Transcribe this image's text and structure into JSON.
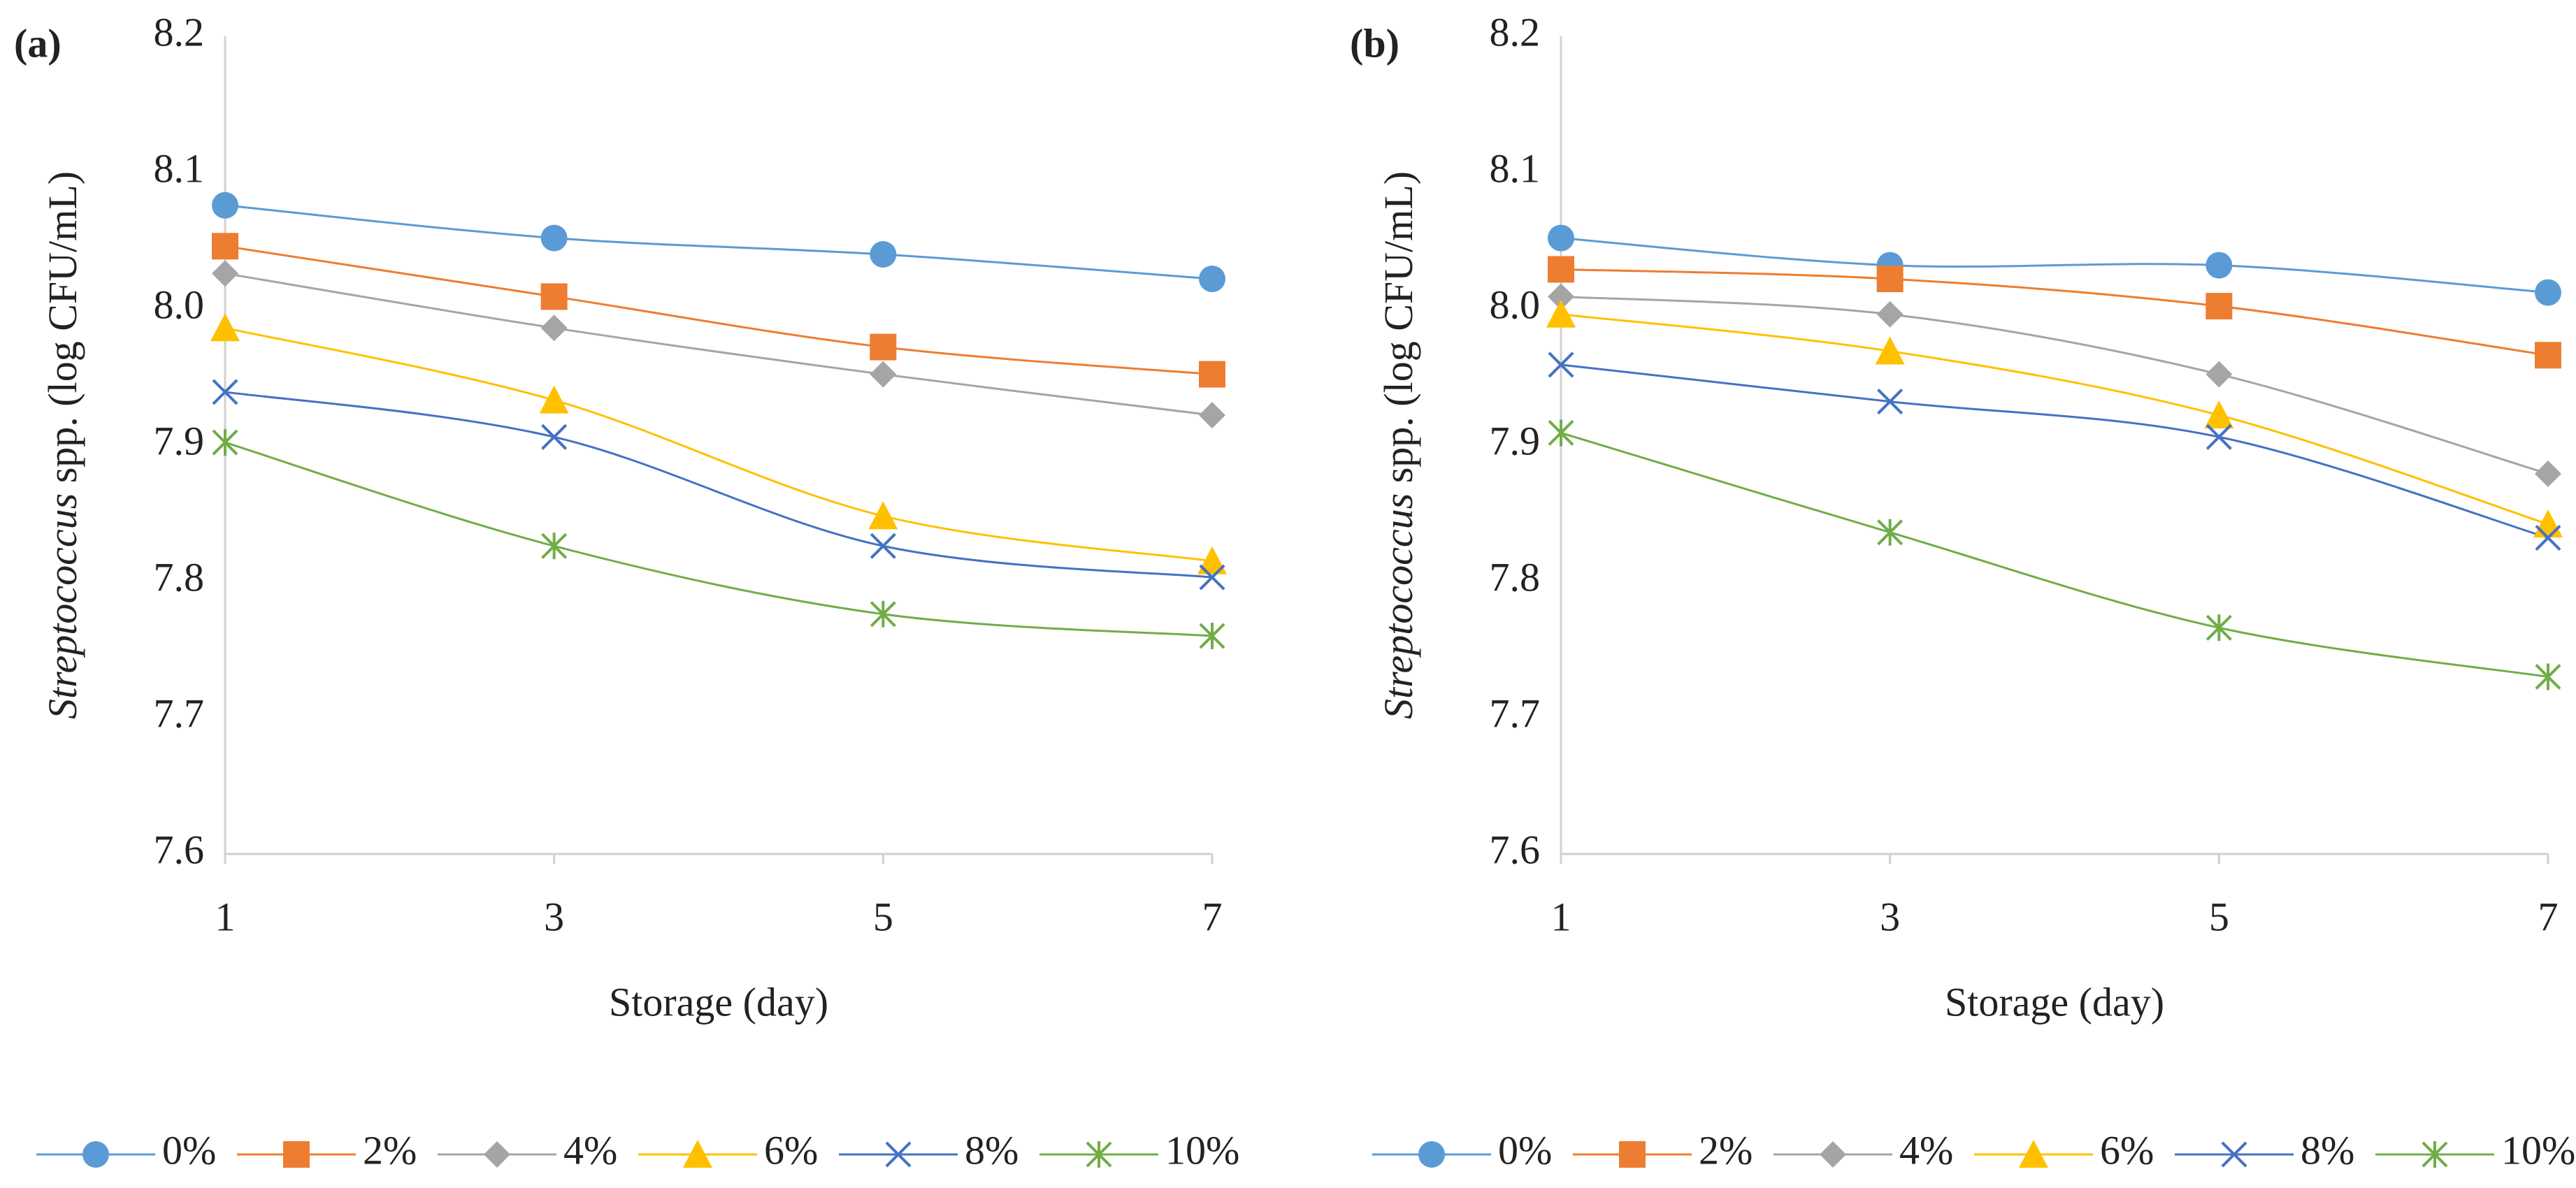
{
  "chart_data": [
    {
      "type": "line",
      "panel_label": "(a)",
      "ylabel_italic": "Streptococcus",
      "ylabel": "spp. (log CFU/mL)",
      "xlabel": "Storage (day)",
      "x": [
        1,
        3,
        5,
        7
      ],
      "xlim": [
        1,
        7
      ],
      "xticks": [
        1,
        3,
        5,
        7
      ],
      "ylim": [
        7.6,
        8.2
      ],
      "yticks": [
        7.6,
        7.7,
        7.8,
        7.9,
        {
          "value": 8.0,
          "label": "8.0"
        },
        8.1,
        8.2
      ],
      "series": [
        {
          "name": "0%",
          "color": "#5b9bd5",
          "marker": "circle",
          "values": [
            8.076,
            8.052,
            8.04,
            8.022
          ]
        },
        {
          "name": "2%",
          "color": "#ed7d31",
          "marker": "square",
          "values": [
            8.046,
            8.009,
            7.972,
            7.952
          ]
        },
        {
          "name": "4%",
          "color": "#a5a5a5",
          "marker": "diamond",
          "values": [
            8.026,
            7.986,
            7.952,
            7.922
          ]
        },
        {
          "name": "6%",
          "color": "#ffc000",
          "marker": "triangle",
          "values": [
            7.986,
            7.933,
            7.848,
            7.815
          ]
        },
        {
          "name": "8%",
          "color": "#4472c4",
          "marker": "x",
          "values": [
            7.939,
            7.906,
            7.826,
            7.803
          ]
        },
        {
          "name": "10%",
          "color": "#70ad47",
          "marker": "star",
          "values": [
            7.902,
            7.826,
            7.776,
            7.76
          ]
        }
      ]
    },
    {
      "type": "line",
      "panel_label": "(b)",
      "ylabel_italic": "Streptococcus",
      "ylabel": "spp. (log CFU/mL)",
      "xlabel": "Storage (day)",
      "x": [
        1,
        3,
        5,
        7
      ],
      "xlim": [
        1,
        7
      ],
      "xticks": [
        1,
        3,
        5,
        7
      ],
      "ylim": [
        7.6,
        8.2
      ],
      "yticks": [
        7.6,
        7.7,
        7.8,
        7.9,
        {
          "value": 8.0,
          "label": "8.0"
        },
        8.1,
        8.2
      ],
      "series": [
        {
          "name": "0%",
          "color": "#5b9bd5",
          "marker": "circle",
          "values": [
            8.052,
            8.032,
            8.032,
            8.012
          ]
        },
        {
          "name": "2%",
          "color": "#ed7d31",
          "marker": "square",
          "values": [
            8.029,
            8.022,
            8.002,
            7.966
          ]
        },
        {
          "name": "4%",
          "color": "#a5a5a5",
          "marker": "diamond",
          "values": [
            8.009,
            7.996,
            7.952,
            7.879
          ]
        },
        {
          "name": "6%",
          "color": "#ffc000",
          "marker": "triangle",
          "values": [
            7.996,
            7.969,
            7.922,
            7.842
          ]
        },
        {
          "name": "8%",
          "color": "#4472c4",
          "marker": "x",
          "values": [
            7.959,
            7.932,
            7.906,
            7.832
          ]
        },
        {
          "name": "10%",
          "color": "#70ad47",
          "marker": "star",
          "values": [
            7.909,
            7.836,
            7.766,
            7.73
          ]
        }
      ]
    }
  ]
}
